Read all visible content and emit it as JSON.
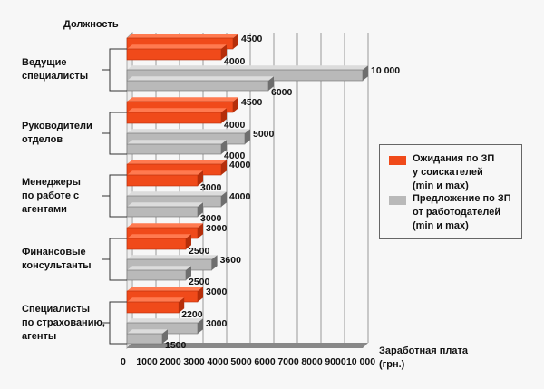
{
  "chart_data": {
    "type": "bar",
    "orientation": "horizontal",
    "ylabel": "Должность",
    "xlabel": "Заработная плата (грн.)",
    "xlim": [
      0,
      10000
    ],
    "x_ticks": [
      "0",
      "1000",
      "2000",
      "3000",
      "4000",
      "5000",
      "6000",
      "7000",
      "8000",
      "9000",
      "10 000"
    ],
    "categories": [
      "Ведущие\nспециалисты",
      "Руководители\nотделов",
      "Менеджеры\nпо работе с\nагентами",
      "Финансовые\nконсультанты",
      "Специалисты\nпо страхованию,\nагенты"
    ],
    "series": [
      {
        "name": "Ожидания по ЗП\nу соискателей\n(min и max)",
        "color": "#f04a1a",
        "max": [
          4500,
          4500,
          4000,
          3000,
          3000
        ],
        "min": [
          4000,
          4000,
          3000,
          2500,
          2200
        ],
        "max_labels": [
          "4500",
          "4500",
          "4000",
          "3000",
          "3000"
        ],
        "min_labels": [
          "4000",
          "4000",
          "3000",
          "2500",
          "2200"
        ]
      },
      {
        "name": "Предложение по ЗП\nот работодателей\n(min и max)",
        "color": "#b9b9b9",
        "max": [
          10000,
          5000,
          4000,
          3600,
          3000
        ],
        "min": [
          6000,
          4000,
          3000,
          2500,
          1500
        ],
        "max_labels": [
          "10 000",
          "5000",
          "4000",
          "3600",
          "3000"
        ],
        "min_labels": [
          "6000",
          "4000",
          "3000",
          "2500",
          "1500"
        ]
      }
    ],
    "legend_position": "right",
    "grid": true
  }
}
